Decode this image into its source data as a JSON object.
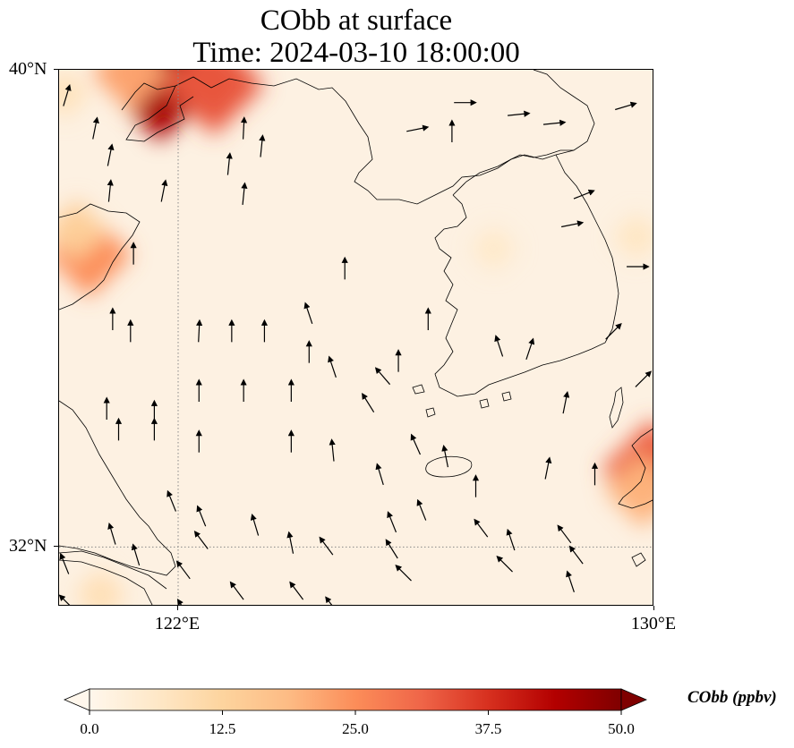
{
  "title": {
    "line1": "CObb at surface",
    "line2": "Time: 2024-03-10 18:00:00"
  },
  "map": {
    "extent_lon": [
      120.0,
      130.0
    ],
    "extent_lat": [
      31.0,
      40.0
    ],
    "lon_ticks": [
      {
        "value": 122,
        "label": "122°E"
      },
      {
        "value": 130,
        "label": "130°E"
      }
    ],
    "lat_ticks": [
      {
        "value": 40,
        "label": "40°N"
      },
      {
        "value": 32,
        "label": "32°N"
      }
    ],
    "gridlines": {
      "lons": [
        122
      ],
      "lats": [
        32
      ],
      "style": "dotted",
      "color": "#888888"
    },
    "background_color": "#fdf1e2",
    "coastline_color": "#000000"
  },
  "colorbar": {
    "label": "CObb (ppbv)",
    "min": 0.0,
    "max": 50.0,
    "ticks": [
      "0.0",
      "12.5",
      "25.0",
      "37.5",
      "50.0"
    ],
    "colormap": "OrRd",
    "extend": "both",
    "stops": [
      "#fff7ec",
      "#fee8c8",
      "#fdd49e",
      "#fdbb84",
      "#fc8d59",
      "#ef6548",
      "#d7301f",
      "#b30000",
      "#7f0000"
    ]
  },
  "concentration_hotspots": [
    {
      "lon": 121.7,
      "lat": 39.85,
      "value": 45
    },
    {
      "lon": 122.6,
      "lat": 39.75,
      "value": 33
    },
    {
      "lon": 121.2,
      "lat": 39.95,
      "value": 22
    },
    {
      "lon": 120.5,
      "lat": 36.9,
      "value": 25
    },
    {
      "lon": 120.3,
      "lat": 37.3,
      "value": 14
    },
    {
      "lon": 129.95,
      "lat": 33.3,
      "value": 32
    },
    {
      "lon": 129.8,
      "lat": 32.95,
      "value": 20
    },
    {
      "lon": 120.7,
      "lat": 31.2,
      "value": 9
    },
    {
      "lon": 120.1,
      "lat": 39.6,
      "value": 8
    },
    {
      "lon": 127.3,
      "lat": 37.0,
      "value": 6
    },
    {
      "lon": 129.7,
      "lat": 37.2,
      "value": 7
    }
  ],
  "wind_vectors": [
    {
      "lon": 120.12,
      "lat": 39.55,
      "u": 0.3,
      "v": 1.0
    },
    {
      "lon": 120.6,
      "lat": 39.0,
      "u": 0.2,
      "v": 1.0
    },
    {
      "lon": 120.85,
      "lat": 38.55,
      "u": 0.2,
      "v": 1.0
    },
    {
      "lon": 120.85,
      "lat": 37.95,
      "u": 0.1,
      "v": 1.0
    },
    {
      "lon": 121.75,
      "lat": 37.95,
      "u": 0.2,
      "v": 1.0
    },
    {
      "lon": 122.85,
      "lat": 38.4,
      "u": 0.1,
      "v": 1.0
    },
    {
      "lon": 123.1,
      "lat": 37.9,
      "u": 0.1,
      "v": 1.0
    },
    {
      "lon": 123.1,
      "lat": 39.0,
      "u": 0.05,
      "v": 1.0
    },
    {
      "lon": 123.4,
      "lat": 38.7,
      "u": 0.1,
      "v": 1.0
    },
    {
      "lon": 121.25,
      "lat": 36.9,
      "u": 0.0,
      "v": 1.0
    },
    {
      "lon": 120.9,
      "lat": 35.8,
      "u": 0.0,
      "v": 1.0
    },
    {
      "lon": 121.2,
      "lat": 35.6,
      "u": 0.0,
      "v": 1.0
    },
    {
      "lon": 122.35,
      "lat": 35.6,
      "u": 0.05,
      "v": 1.0
    },
    {
      "lon": 122.9,
      "lat": 35.6,
      "u": 0.0,
      "v": 1.0
    },
    {
      "lon": 123.45,
      "lat": 35.6,
      "u": 0.0,
      "v": 1.0
    },
    {
      "lon": 124.2,
      "lat": 35.25,
      "u": 0.0,
      "v": 1.0
    },
    {
      "lon": 124.8,
      "lat": 36.65,
      "u": 0.0,
      "v": 1.0
    },
    {
      "lon": 126.2,
      "lat": 35.8,
      "u": 0.0,
      "v": 1.0
    },
    {
      "lon": 125.7,
      "lat": 35.1,
      "u": 0.0,
      "v": 1.0
    },
    {
      "lon": 120.8,
      "lat": 34.3,
      "u": 0.0,
      "v": 1.0
    },
    {
      "lon": 121.6,
      "lat": 34.25,
      "u": 0.0,
      "v": 1.0
    },
    {
      "lon": 122.35,
      "lat": 34.6,
      "u": 0.0,
      "v": 1.0
    },
    {
      "lon": 123.1,
      "lat": 34.6,
      "u": 0.0,
      "v": 1.0
    },
    {
      "lon": 123.9,
      "lat": 34.6,
      "u": 0.0,
      "v": 1.0
    },
    {
      "lon": 121.0,
      "lat": 33.95,
      "u": 0.0,
      "v": 1.0
    },
    {
      "lon": 121.6,
      "lat": 33.95,
      "u": 0.0,
      "v": 1.0
    },
    {
      "lon": 122.35,
      "lat": 33.75,
      "u": 0.0,
      "v": 1.0
    },
    {
      "lon": 123.9,
      "lat": 33.75,
      "u": 0.0,
      "v": 1.0
    },
    {
      "lon": 124.6,
      "lat": 33.6,
      "u": -0.1,
      "v": 1.0
    },
    {
      "lon": 125.4,
      "lat": 33.2,
      "u": -0.3,
      "v": 1.0
    },
    {
      "lon": 121.9,
      "lat": 32.75,
      "u": -0.4,
      "v": 1.0
    },
    {
      "lon": 122.4,
      "lat": 32.5,
      "u": -0.4,
      "v": 1.0
    },
    {
      "lon": 123.3,
      "lat": 32.35,
      "u": -0.3,
      "v": 1.0
    },
    {
      "lon": 123.9,
      "lat": 32.05,
      "u": -0.2,
      "v": 1.0
    },
    {
      "lon": 120.9,
      "lat": 32.2,
      "u": -0.3,
      "v": 1.0
    },
    {
      "lon": 121.3,
      "lat": 31.85,
      "u": -0.3,
      "v": 1.0
    },
    {
      "lon": 120.1,
      "lat": 31.7,
      "u": -0.4,
      "v": 1.0
    },
    {
      "lon": 120.15,
      "lat": 31.05,
      "u": -0.8,
      "v": 0.8
    },
    {
      "lon": 122.1,
      "lat": 31.6,
      "u": -0.6,
      "v": 0.8
    },
    {
      "lon": 122.4,
      "lat": 32.1,
      "u": -0.6,
      "v": 0.8
    },
    {
      "lon": 123.0,
      "lat": 31.25,
      "u": -0.6,
      "v": 0.8
    },
    {
      "lon": 124.0,
      "lat": 31.25,
      "u": -0.6,
      "v": 0.8
    },
    {
      "lon": 124.5,
      "lat": 32.0,
      "u": -0.6,
      "v": 0.8
    },
    {
      "lon": 125.6,
      "lat": 32.4,
      "u": -0.4,
      "v": 1.0
    },
    {
      "lon": 126.1,
      "lat": 32.6,
      "u": -0.4,
      "v": 1.0
    },
    {
      "lon": 127.1,
      "lat": 32.3,
      "u": -0.6,
      "v": 0.8
    },
    {
      "lon": 128.5,
      "lat": 32.2,
      "u": -0.6,
      "v": 0.8
    },
    {
      "lon": 128.7,
      "lat": 31.85,
      "u": -0.6,
      "v": 0.8
    },
    {
      "lon": 125.8,
      "lat": 31.55,
      "u": -0.7,
      "v": 0.7
    },
    {
      "lon": 125.6,
      "lat": 31.95,
      "u": -0.5,
      "v": 0.8
    },
    {
      "lon": 124.6,
      "lat": 31.0,
      "u": -0.6,
      "v": 0.8
    },
    {
      "lon": 122.1,
      "lat": 30.95,
      "u": -0.5,
      "v": 0.8
    },
    {
      "lon": 128.8,
      "lat": 30.9,
      "u": -0.6,
      "v": 0.3
    },
    {
      "lon": 127.5,
      "lat": 31.7,
      "u": -0.6,
      "v": 0.6
    },
    {
      "lon": 126.0,
      "lat": 33.7,
      "u": -0.4,
      "v": 0.9
    },
    {
      "lon": 126.5,
      "lat": 33.5,
      "u": -0.2,
      "v": 1.0
    },
    {
      "lon": 125.2,
      "lat": 34.4,
      "u": -0.5,
      "v": 0.8
    },
    {
      "lon": 124.6,
      "lat": 35.0,
      "u": -0.3,
      "v": 0.9
    },
    {
      "lon": 125.45,
      "lat": 34.85,
      "u": -0.6,
      "v": 0.7
    },
    {
      "lon": 124.2,
      "lat": 35.9,
      "u": -0.3,
      "v": 0.9
    },
    {
      "lon": 126.0,
      "lat": 39.0,
      "u": 1.0,
      "v": 0.2
    },
    {
      "lon": 126.8,
      "lat": 39.45,
      "u": 1.0,
      "v": 0.0
    },
    {
      "lon": 127.7,
      "lat": 39.25,
      "u": 1.0,
      "v": 0.1
    },
    {
      "lon": 128.3,
      "lat": 39.1,
      "u": 1.0,
      "v": 0.1
    },
    {
      "lon": 129.5,
      "lat": 39.38,
      "u": 1.0,
      "v": 0.3
    },
    {
      "lon": 128.8,
      "lat": 37.9,
      "u": 1.0,
      "v": 0.4
    },
    {
      "lon": 129.7,
      "lat": 36.7,
      "u": 1.0,
      "v": 0.0
    },
    {
      "lon": 128.6,
      "lat": 37.4,
      "u": 1.0,
      "v": 0.2
    },
    {
      "lon": 129.3,
      "lat": 35.6,
      "u": 0.7,
      "v": 0.7
    },
    {
      "lon": 129.8,
      "lat": 34.8,
      "u": 0.7,
      "v": 0.7
    },
    {
      "lon": 126.6,
      "lat": 38.95,
      "u": 0.0,
      "v": 1.0
    },
    {
      "lon": 127.9,
      "lat": 35.3,
      "u": 0.3,
      "v": 0.9
    },
    {
      "lon": 127.4,
      "lat": 35.35,
      "u": -0.3,
      "v": 0.9
    },
    {
      "lon": 128.5,
      "lat": 34.4,
      "u": 0.2,
      "v": 1.0
    },
    {
      "lon": 127.0,
      "lat": 33.0,
      "u": 0.0,
      "v": 1.0
    },
    {
      "lon": 127.6,
      "lat": 32.1,
      "u": -0.3,
      "v": 0.9
    },
    {
      "lon": 128.2,
      "lat": 33.3,
      "u": 0.2,
      "v": 1.0
    },
    {
      "lon": 129.0,
      "lat": 33.2,
      "u": 0.0,
      "v": 1.0
    },
    {
      "lon": 128.6,
      "lat": 31.4,
      "u": -0.3,
      "v": 0.9
    }
  ]
}
